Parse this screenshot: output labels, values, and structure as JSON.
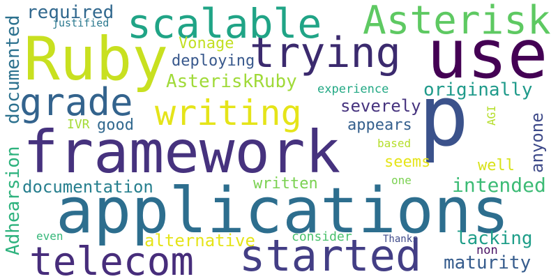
{
  "words": [
    {
      "text": "framework",
      "color": "#46327e"
    },
    {
      "text": "applications",
      "color": "#2d6e8e"
    },
    {
      "text": "p",
      "color": "#3b528b"
    },
    {
      "text": "use",
      "color": "#440154"
    },
    {
      "text": "Ruby",
      "color": "#c8e020"
    },
    {
      "text": "trying",
      "color": "#3b2a6e"
    },
    {
      "text": "started",
      "color": "#433e85"
    },
    {
      "text": "telecom",
      "color": "#472d7b"
    },
    {
      "text": "scalable",
      "color": "#20a486"
    },
    {
      "text": "Asterisk",
      "color": "#5ec962"
    },
    {
      "text": "writing",
      "color": "#e5e419"
    },
    {
      "text": "grade",
      "color": "#33638d"
    },
    {
      "text": "Adhearsion",
      "color": "#2db27d"
    },
    {
      "text": "documented",
      "color": "#2c718e"
    },
    {
      "text": "required",
      "color": "#31688e"
    },
    {
      "text": "originally",
      "color": "#1f9a8a"
    },
    {
      "text": "intended",
      "color": "#3cbb75"
    },
    {
      "text": "documentation",
      "color": "#277f8e"
    },
    {
      "text": "alternative",
      "color": "#e5e419"
    },
    {
      "text": "AsteriskRuby",
      "color": "#a0da39"
    },
    {
      "text": "maturity",
      "color": "#365c8d"
    },
    {
      "text": "lacking",
      "color": "#1f9e89"
    },
    {
      "text": "severely",
      "color": "#46337e"
    },
    {
      "text": "anyone",
      "color": "#3e4a89"
    },
    {
      "text": "appears",
      "color": "#35608d"
    },
    {
      "text": "deploying",
      "color": "#38588c"
    },
    {
      "text": "Vonage",
      "color": "#c2df23"
    },
    {
      "text": "good",
      "color": "#31688e"
    },
    {
      "text": "seems",
      "color": "#e5e419"
    },
    {
      "text": "well",
      "color": "#d8e219"
    },
    {
      "text": "written",
      "color": "#7ad151"
    },
    {
      "text": "consider",
      "color": "#4ac16d"
    },
    {
      "text": "experience",
      "color": "#22a884"
    },
    {
      "text": "justified",
      "color": "#2a788e"
    },
    {
      "text": "based",
      "color": "#b5de2b"
    },
    {
      "text": "IVR",
      "color": "#a5db36"
    },
    {
      "text": "even",
      "color": "#35b779"
    },
    {
      "text": "one",
      "color": "#7ad151"
    },
    {
      "text": "Thanks",
      "color": "#3e4989"
    },
    {
      "text": "non",
      "color": "#471063"
    },
    {
      "text": "AGI",
      "color": "#b5de2b"
    }
  ]
}
